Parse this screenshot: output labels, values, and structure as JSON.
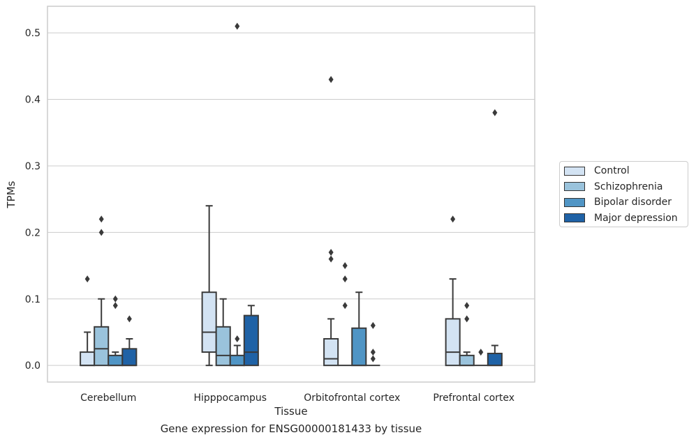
{
  "chart_data": {
    "type": "box",
    "title": "",
    "caption": "Gene expression for ENSG00000181433 by tissue",
    "xlabel": "Tissue",
    "ylabel": "TPMs",
    "ylim": [
      -0.025,
      0.54
    ],
    "yticks": [
      0.0,
      0.1,
      0.2,
      0.3,
      0.4,
      0.5
    ],
    "ytick_labels": [
      "0.0",
      "0.1",
      "0.2",
      "0.3",
      "0.4",
      "0.5"
    ],
    "grid": "horizontal",
    "legend_position": "right",
    "categories": [
      "Cerebellum",
      "Hipppocampus",
      "Orbitofrontal cortex",
      "Prefrontal cortex"
    ],
    "series": [
      {
        "name": "Control",
        "color": "#d3e3f3",
        "boxes": [
          {
            "whislo": 0.0,
            "q1": 0.0,
            "med": 0.0,
            "q3": 0.02,
            "whishi": 0.05,
            "fliers": [
              0.13
            ]
          },
          {
            "whislo": 0.0,
            "q1": 0.02,
            "med": 0.05,
            "q3": 0.11,
            "whishi": 0.24,
            "fliers": []
          },
          {
            "whislo": 0.0,
            "q1": 0.0,
            "med": 0.01,
            "q3": 0.04,
            "whishi": 0.07,
            "fliers": [
              0.16,
              0.17,
              0.43
            ]
          },
          {
            "whislo": 0.0,
            "q1": 0.0,
            "med": 0.02,
            "q3": 0.07,
            "whishi": 0.13,
            "fliers": [
              0.22
            ]
          }
        ]
      },
      {
        "name": "Schizophrenia",
        "color": "#9ac3dc",
        "boxes": [
          {
            "whislo": 0.0,
            "q1": 0.0,
            "med": 0.025,
            "q3": 0.058,
            "whishi": 0.1,
            "fliers": [
              0.2,
              0.22
            ]
          },
          {
            "whislo": 0.0,
            "q1": 0.0,
            "med": 0.015,
            "q3": 0.058,
            "whishi": 0.1,
            "fliers": []
          },
          {
            "whislo": 0.0,
            "q1": 0.0,
            "med": 0.0,
            "q3": 0.0,
            "whishi": 0.0,
            "fliers": [
              0.09,
              0.13,
              0.15
            ]
          },
          {
            "whislo": 0.0,
            "q1": 0.0,
            "med": 0.0,
            "q3": 0.015,
            "whishi": 0.02,
            "fliers": [
              0.07,
              0.09
            ]
          }
        ]
      },
      {
        "name": "Bipolar disorder",
        "color": "#5095c5",
        "boxes": [
          {
            "whislo": 0.0,
            "q1": 0.0,
            "med": 0.0,
            "q3": 0.015,
            "whishi": 0.02,
            "fliers": [
              0.09,
              0.1
            ]
          },
          {
            "whislo": 0.0,
            "q1": 0.0,
            "med": 0.0,
            "q3": 0.015,
            "whishi": 0.03,
            "fliers": [
              0.04,
              0.51
            ]
          },
          {
            "whislo": 0.0,
            "q1": 0.0,
            "med": 0.0,
            "q3": 0.056,
            "whishi": 0.11,
            "fliers": []
          },
          {
            "whislo": 0.0,
            "q1": 0.0,
            "med": 0.0,
            "q3": 0.0,
            "whishi": 0.0,
            "fliers": [
              0.02
            ]
          }
        ]
      },
      {
        "name": "Major depression",
        "color": "#1f62a6",
        "boxes": [
          {
            "whislo": 0.0,
            "q1": 0.0,
            "med": 0.0,
            "q3": 0.025,
            "whishi": 0.04,
            "fliers": [
              0.07
            ]
          },
          {
            "whislo": 0.0,
            "q1": 0.0,
            "med": 0.02,
            "q3": 0.075,
            "whishi": 0.09,
            "fliers": []
          },
          {
            "whislo": 0.0,
            "q1": 0.0,
            "med": 0.0,
            "q3": 0.0,
            "whishi": 0.0,
            "fliers": [
              0.01,
              0.02,
              0.06
            ]
          },
          {
            "whislo": 0.0,
            "q1": 0.0,
            "med": 0.0,
            "q3": 0.018,
            "whishi": 0.03,
            "fliers": [
              0.38
            ]
          }
        ]
      }
    ]
  }
}
